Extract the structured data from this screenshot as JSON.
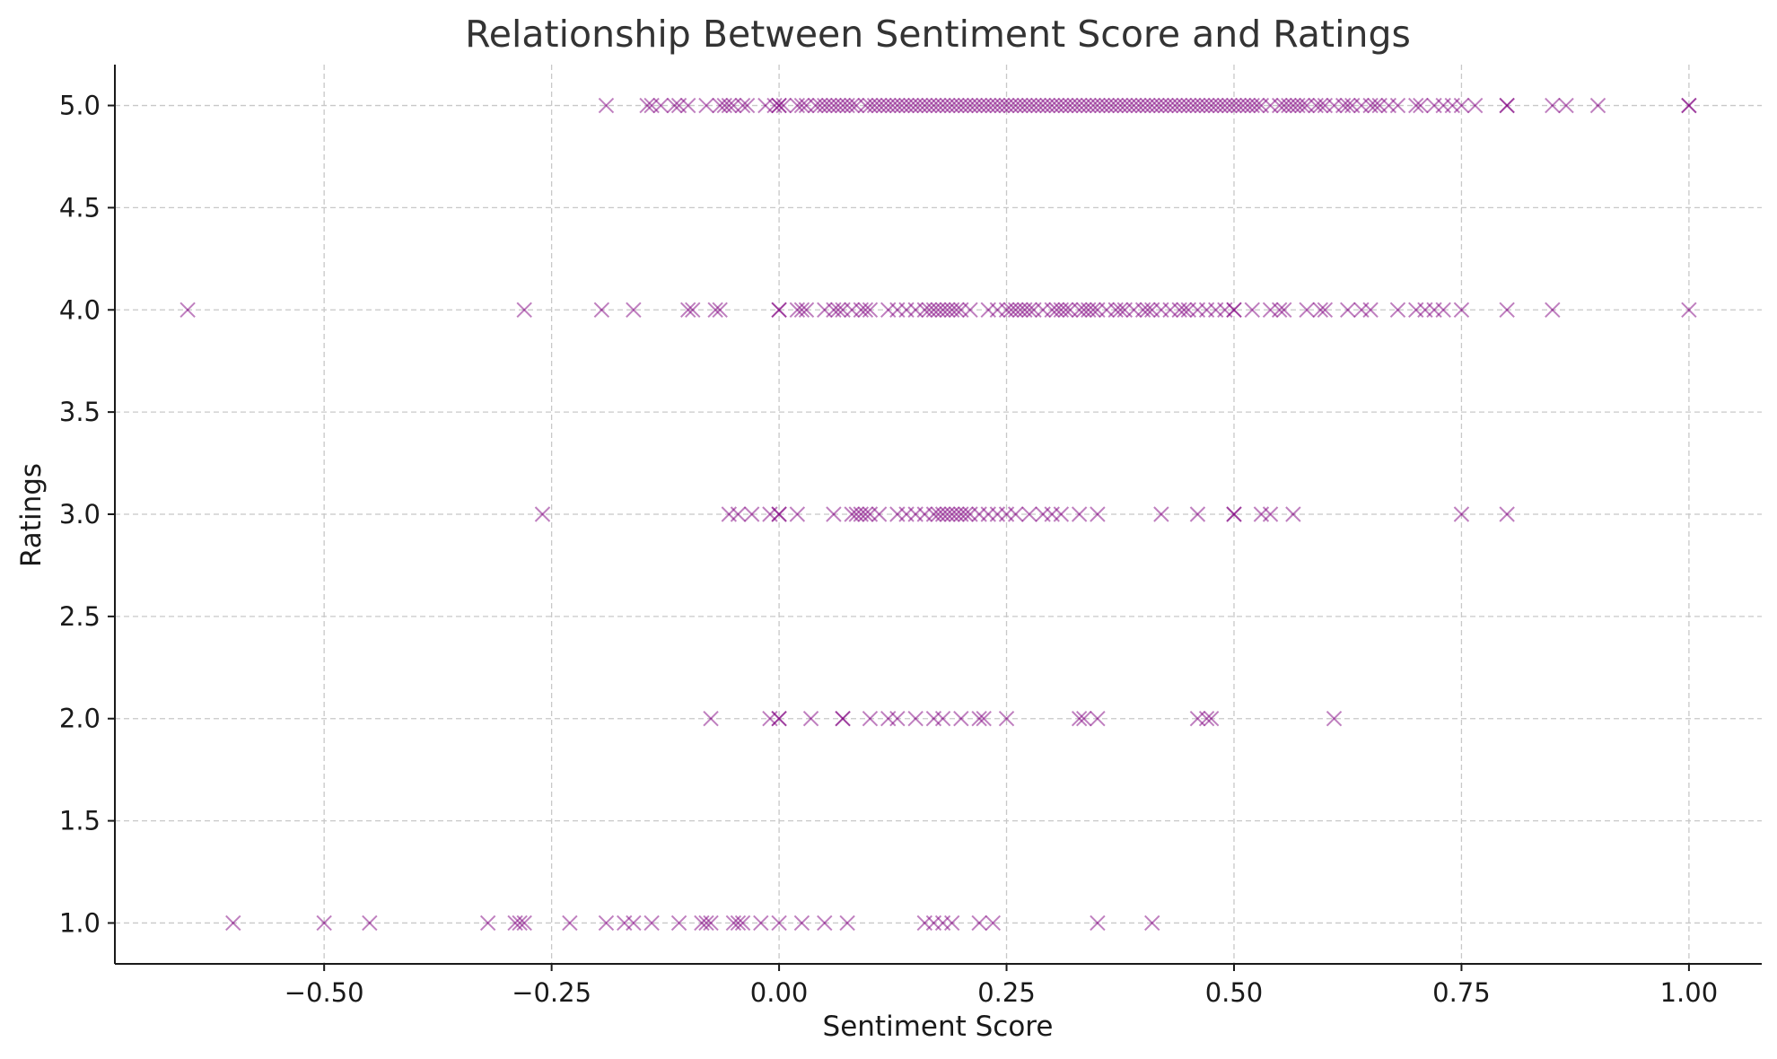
{
  "chart_data": {
    "type": "scatter",
    "title": "Relationship Between Sentiment Score and Ratings",
    "xlabel": "Sentiment Score",
    "ylabel": "Ratings",
    "xlim": [
      -0.73,
      1.08
    ],
    "ylim": [
      0.8,
      5.2
    ],
    "xticks": [
      -0.5,
      -0.25,
      0.0,
      0.25,
      0.5,
      0.75,
      1.0
    ],
    "xtick_labels": [
      "−0.50",
      "−0.25",
      "0.00",
      "0.25",
      "0.50",
      "0.75",
      "1.00"
    ],
    "yticks": [
      1.0,
      1.5,
      2.0,
      2.5,
      3.0,
      3.5,
      4.0,
      4.5,
      5.0
    ],
    "ytick_labels": [
      "1.0",
      "1.5",
      "2.0",
      "2.5",
      "3.0",
      "3.5",
      "4.0",
      "4.5",
      "5.0"
    ],
    "grid": true,
    "marker": "x",
    "color": "#800080",
    "series": [
      {
        "rating": 1.0,
        "x": [
          -0.6,
          -0.5,
          -0.45,
          -0.32,
          -0.29,
          -0.285,
          -0.28,
          -0.23,
          -0.19,
          -0.17,
          -0.16,
          -0.14,
          -0.11,
          -0.085,
          -0.08,
          -0.075,
          -0.05,
          -0.045,
          -0.04,
          -0.02,
          0.0,
          0.025,
          0.05,
          0.075,
          0.16,
          0.17,
          0.18,
          0.19,
          0.22,
          0.235,
          0.35,
          0.41
        ]
      },
      {
        "rating": 2.0,
        "x": [
          -0.075,
          -0.01,
          0.0,
          0.0,
          0.035,
          0.07,
          0.07,
          0.1,
          0.12,
          0.13,
          0.15,
          0.17,
          0.18,
          0.2,
          0.22,
          0.225,
          0.25,
          0.33,
          0.335,
          0.35,
          0.46,
          0.47,
          0.475,
          0.61
        ]
      },
      {
        "rating": 3.0,
        "x": [
          -0.26,
          -0.055,
          -0.045,
          -0.03,
          -0.01,
          0.0,
          0.0,
          0.02,
          0.06,
          0.08,
          0.085,
          0.09,
          0.095,
          0.1,
          0.11,
          0.13,
          0.14,
          0.15,
          0.16,
          0.17,
          0.175,
          0.18,
          0.185,
          0.19,
          0.195,
          0.2,
          0.205,
          0.21,
          0.22,
          0.23,
          0.24,
          0.25,
          0.26,
          0.275,
          0.29,
          0.3,
          0.31,
          0.33,
          0.35,
          0.42,
          0.46,
          0.5,
          0.5,
          0.53,
          0.54,
          0.565,
          0.75,
          0.8
        ]
      },
      {
        "rating": 4.0,
        "x": [
          -0.65,
          -0.28,
          -0.195,
          -0.16,
          -0.1,
          -0.095,
          -0.07,
          -0.065,
          0.0,
          0.0,
          0.02,
          0.025,
          0.03,
          0.05,
          0.06,
          0.065,
          0.07,
          0.08,
          0.09,
          0.095,
          0.1,
          0.12,
          0.13,
          0.14,
          0.15,
          0.16,
          0.165,
          0.17,
          0.175,
          0.18,
          0.185,
          0.19,
          0.195,
          0.2,
          0.21,
          0.23,
          0.24,
          0.25,
          0.255,
          0.26,
          0.265,
          0.27,
          0.275,
          0.28,
          0.29,
          0.3,
          0.305,
          0.31,
          0.315,
          0.32,
          0.33,
          0.335,
          0.34,
          0.345,
          0.35,
          0.36,
          0.37,
          0.375,
          0.38,
          0.39,
          0.4,
          0.405,
          0.41,
          0.42,
          0.43,
          0.44,
          0.445,
          0.45,
          0.46,
          0.47,
          0.48,
          0.49,
          0.5,
          0.5,
          0.52,
          0.54,
          0.55,
          0.555,
          0.58,
          0.595,
          0.6,
          0.625,
          0.64,
          0.65,
          0.68,
          0.7,
          0.71,
          0.72,
          0.73,
          0.75,
          0.8,
          0.85,
          1.0
        ]
      },
      {
        "rating": 5.0,
        "x": [
          -0.19,
          -0.145,
          -0.14,
          -0.13,
          -0.115,
          -0.11,
          -0.1,
          -0.08,
          -0.065,
          -0.06,
          -0.055,
          -0.05,
          -0.04,
          -0.035,
          -0.015,
          -0.005,
          0.0,
          0.0,
          0.005,
          0.02,
          0.025,
          0.03,
          0.04,
          0.045,
          0.05,
          0.055,
          0.06,
          0.065,
          0.07,
          0.075,
          0.08,
          0.085,
          0.095,
          0.1,
          0.105,
          0.11,
          0.115,
          0.12,
          0.125,
          0.13,
          0.135,
          0.14,
          0.145,
          0.15,
          0.155,
          0.16,
          0.165,
          0.17,
          0.175,
          0.18,
          0.185,
          0.19,
          0.195,
          0.2,
          0.205,
          0.21,
          0.215,
          0.22,
          0.225,
          0.23,
          0.235,
          0.24,
          0.245,
          0.25,
          0.255,
          0.26,
          0.265,
          0.27,
          0.275,
          0.28,
          0.285,
          0.29,
          0.295,
          0.3,
          0.305,
          0.31,
          0.315,
          0.32,
          0.325,
          0.33,
          0.335,
          0.34,
          0.345,
          0.35,
          0.355,
          0.36,
          0.365,
          0.37,
          0.375,
          0.38,
          0.385,
          0.39,
          0.395,
          0.4,
          0.405,
          0.41,
          0.415,
          0.42,
          0.425,
          0.43,
          0.435,
          0.44,
          0.445,
          0.45,
          0.455,
          0.46,
          0.465,
          0.47,
          0.475,
          0.48,
          0.485,
          0.49,
          0.495,
          0.5,
          0.505,
          0.51,
          0.515,
          0.52,
          0.525,
          0.53,
          0.54,
          0.55,
          0.555,
          0.56,
          0.565,
          0.57,
          0.575,
          0.58,
          0.59,
          0.595,
          0.6,
          0.61,
          0.62,
          0.625,
          0.63,
          0.64,
          0.65,
          0.655,
          0.66,
          0.67,
          0.68,
          0.7,
          0.705,
          0.72,
          0.73,
          0.74,
          0.75,
          0.765,
          0.8,
          0.8,
          0.85,
          0.865,
          0.9,
          1.0,
          1.0
        ]
      }
    ]
  }
}
